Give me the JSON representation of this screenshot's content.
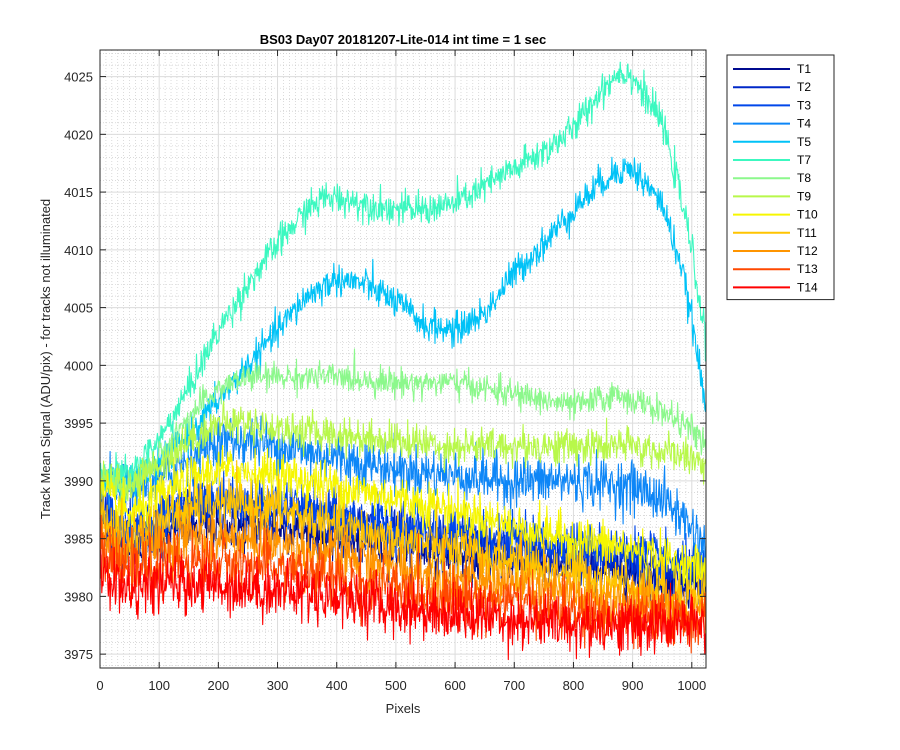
{
  "chart_data": {
    "type": "line",
    "title": "BS03 Day07 20181207-Lite-014 int time = 1 sec",
    "xlabel": "Pixels",
    "ylabel": "Track Mean Signal (ADU/pix) - for tracks not illuminated",
    "xlim": [
      0,
      1024
    ],
    "ylim": [
      3973.8,
      4027.3
    ],
    "xticks": [
      0,
      100,
      200,
      300,
      400,
      500,
      600,
      700,
      800,
      900,
      1000
    ],
    "yticks": [
      3975,
      3980,
      3985,
      3990,
      3995,
      4000,
      4005,
      4010,
      4015,
      4020,
      4025
    ],
    "grid": true,
    "minor_grid": true,
    "legend_position": "outside-top-right",
    "series": [
      {
        "name": "T1",
        "color": "#000a8f",
        "noise": 1.0,
        "x": [
          0,
          50,
          100,
          150,
          200,
          300,
          400,
          500,
          600,
          700,
          800,
          900,
          1000,
          1024
        ],
        "y": [
          3987,
          3984,
          3985,
          3986,
          3986,
          3986,
          3985,
          3984,
          3983.5,
          3983,
          3982.5,
          3982,
          3981,
          3980.5
        ]
      },
      {
        "name": "T2",
        "color": "#0028c8",
        "noise": 1.1,
        "x": [
          0,
          50,
          100,
          150,
          200,
          300,
          400,
          500,
          600,
          700,
          800,
          900,
          1000,
          1024
        ],
        "y": [
          3988,
          3985,
          3986,
          3987.5,
          3988,
          3987.5,
          3986.5,
          3985.5,
          3985,
          3984,
          3983.5,
          3983,
          3981.5,
          3981
        ]
      },
      {
        "name": "T3",
        "color": "#0047ea",
        "noise": 1.0,
        "x": [
          0,
          50,
          100,
          150,
          200,
          300,
          400,
          500,
          600,
          700,
          800,
          900,
          1000,
          1024
        ],
        "y": [
          3988,
          3985.5,
          3987,
          3988,
          3988.5,
          3988,
          3987,
          3986,
          3985.5,
          3985,
          3984.5,
          3984,
          3982.5,
          3982
        ]
      },
      {
        "name": "T4",
        "color": "#0d86f7",
        "noise": 1.1,
        "x": [
          0,
          50,
          100,
          150,
          200,
          250,
          300,
          400,
          500,
          600,
          700,
          800,
          900,
          950,
          1000,
          1024
        ],
        "y": [
          3990,
          3989,
          3990,
          3992,
          3993.5,
          3993.5,
          3993,
          3992,
          3991,
          3990.5,
          3990,
          3990,
          3989.5,
          3988.5,
          3986,
          3984
        ]
      },
      {
        "name": "T5",
        "color": "#00c2f7",
        "noise": 0.7,
        "x": [
          0,
          50,
          100,
          150,
          200,
          250,
          300,
          350,
          400,
          450,
          500,
          550,
          600,
          650,
          700,
          750,
          800,
          850,
          880,
          900,
          950,
          980,
          1000,
          1024
        ],
        "y": [
          3990,
          3989.5,
          3991.5,
          3994,
          3997,
          4000,
          4003,
          4006,
          4007.5,
          4007,
          4005.5,
          4003.5,
          4003,
          4004.5,
          4008,
          4010.5,
          4013.5,
          4016,
          4017,
          4017,
          4014,
          4009,
          4004,
          3996
        ]
      },
      {
        "name": "T7",
        "color": "#3cf8c0",
        "noise": 0.7,
        "x": [
          0,
          50,
          100,
          150,
          200,
          250,
          300,
          350,
          380,
          400,
          450,
          500,
          550,
          600,
          650,
          700,
          750,
          800,
          850,
          880,
          900,
          950,
          980,
          1000,
          1024
        ],
        "y": [
          3991,
          3990.5,
          3993.5,
          3998,
          4003,
          4007,
          4010.5,
          4013.5,
          4014.5,
          4014.5,
          4014,
          4013.5,
          4013.5,
          4014,
          4015.5,
          4017,
          4018.5,
          4020.5,
          4024,
          4025.5,
          4025,
          4021,
          4015,
          4010,
          4002
        ]
      },
      {
        "name": "T8",
        "color": "#8cf88c",
        "noise": 0.6,
        "x": [
          0,
          50,
          100,
          150,
          200,
          250,
          300,
          400,
          500,
          600,
          700,
          800,
          880,
          900,
          950,
          1000,
          1024
        ],
        "y": [
          3990,
          3989.5,
          3992,
          3995.5,
          3998,
          3999,
          3999,
          3999,
          3998.5,
          3998.5,
          3997.5,
          3996.5,
          3997.5,
          3997,
          3996,
          3994.5,
          3993
        ]
      },
      {
        "name": "T9",
        "color": "#b8f84a",
        "noise": 0.8,
        "x": [
          0,
          50,
          100,
          150,
          200,
          250,
          300,
          400,
          500,
          600,
          700,
          800,
          900,
          1000,
          1024
        ],
        "y": [
          3990,
          3989.5,
          3991.5,
          3993.5,
          3995,
          3995,
          3994.5,
          3994,
          3993.5,
          3993,
          3993,
          3993,
          3993,
          3992,
          3991.5
        ]
      },
      {
        "name": "T10",
        "color": "#f6f600",
        "noise": 1.0,
        "x": [
          0,
          50,
          100,
          150,
          200,
          300,
          400,
          500,
          600,
          700,
          800,
          900,
          1000,
          1024
        ],
        "y": [
          3989,
          3987,
          3988.5,
          3990,
          3991,
          3990.5,
          3989.5,
          3988.5,
          3987.5,
          3986,
          3985,
          3984,
          3982.5,
          3982
        ]
      },
      {
        "name": "T11",
        "color": "#ffc400",
        "noise": 1.1,
        "x": [
          0,
          50,
          100,
          150,
          200,
          300,
          400,
          500,
          600,
          700,
          800,
          900,
          1000,
          1024
        ],
        "y": [
          3987,
          3985,
          3986.5,
          3987.5,
          3988,
          3987.5,
          3986,
          3985,
          3984,
          3983,
          3982,
          3981,
          3980,
          3980
        ]
      },
      {
        "name": "T12",
        "color": "#ff9500",
        "noise": 1.2,
        "x": [
          0,
          50,
          100,
          150,
          200,
          300,
          400,
          500,
          600,
          700,
          800,
          900,
          1000,
          1024
        ],
        "y": [
          3985,
          3983.5,
          3984.5,
          3985,
          3985,
          3984.5,
          3983.5,
          3982.5,
          3981.5,
          3981,
          3980,
          3979.5,
          3979,
          3979
        ]
      },
      {
        "name": "T13",
        "color": "#ff4800",
        "noise": 1.2,
        "x": [
          0,
          50,
          100,
          150,
          200,
          300,
          400,
          500,
          600,
          700,
          800,
          900,
          1000,
          1024
        ],
        "y": [
          3983.5,
          3982,
          3983,
          3983,
          3983,
          3982.5,
          3981.5,
          3980.5,
          3980,
          3979.5,
          3978.5,
          3978,
          3978,
          3978
        ]
      },
      {
        "name": "T14",
        "color": "#ff0000",
        "noise": 1.2,
        "x": [
          0,
          50,
          100,
          150,
          200,
          300,
          400,
          500,
          600,
          700,
          800,
          900,
          1000,
          1024
        ],
        "y": [
          3982,
          3980.5,
          3981,
          3981,
          3981,
          3980.5,
          3980,
          3979,
          3978.5,
          3978,
          3977.5,
          3977.5,
          3977.5,
          3977.5
        ]
      }
    ]
  }
}
